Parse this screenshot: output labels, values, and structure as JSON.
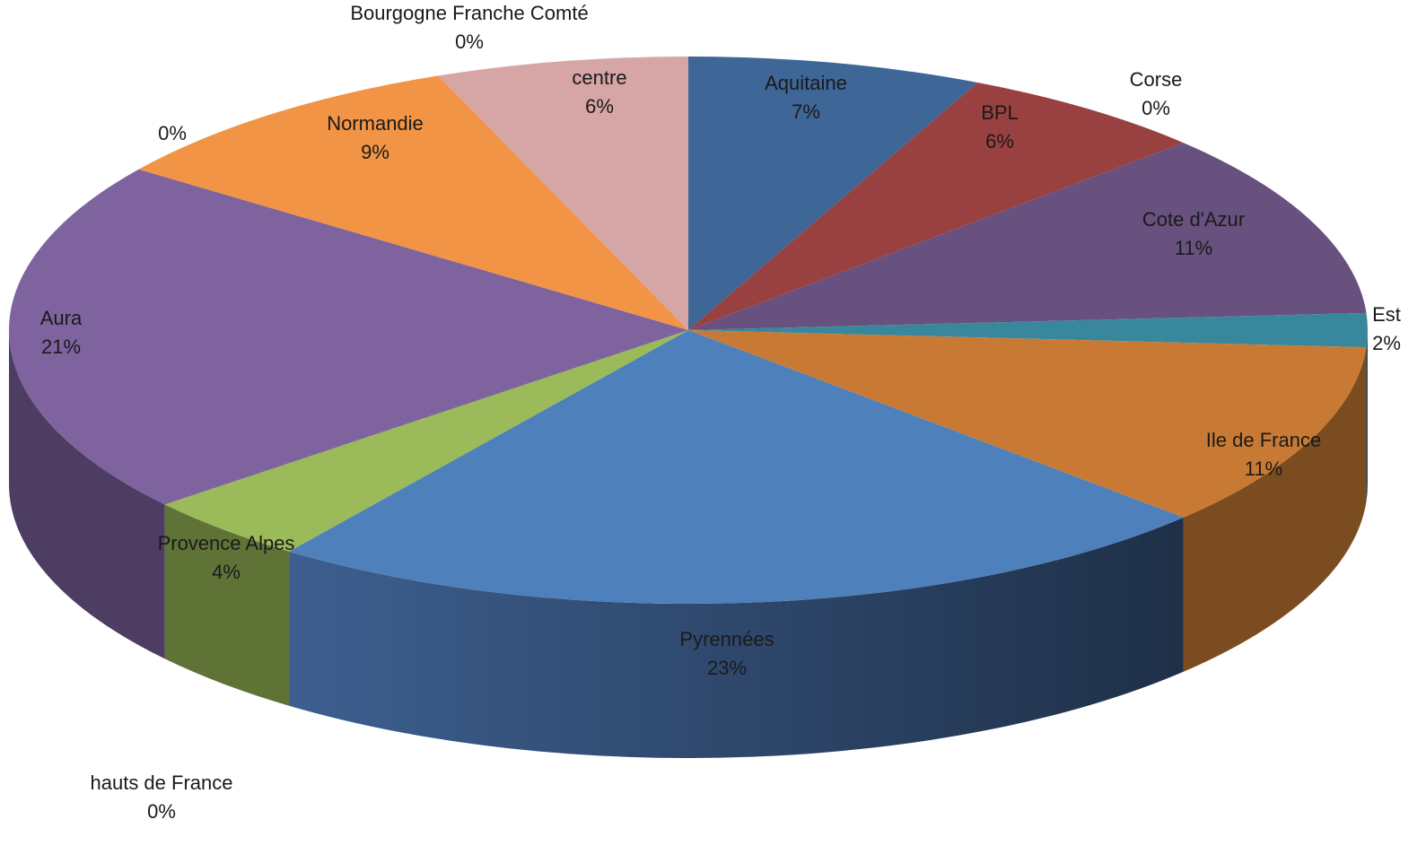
{
  "chart_data": {
    "type": "pie",
    "style": "3d",
    "legend": "none",
    "start_angle_deg": 0,
    "direction": "clockwise",
    "slices": [
      {
        "label": "Aquitaine",
        "value": 7,
        "display": "7%",
        "color": "#3E6697"
      },
      {
        "label": "BPL",
        "value": 6,
        "display": "6%",
        "color": "#994040"
      },
      {
        "label": "Corse",
        "value": 0,
        "display": "0%",
        "color": "#7B5E9A"
      },
      {
        "label": "Cote d'Azur",
        "value": 11,
        "display": "11%",
        "color": "#68507F"
      },
      {
        "label": "Est",
        "value": 2,
        "display": "2%",
        "color": "#38879C"
      },
      {
        "label": "Ile de France",
        "value": 11,
        "display": "11%",
        "color": "#C87A35"
      },
      {
        "label": "Pyrennées",
        "value": 23,
        "display": "23%",
        "color": "#4E80BB"
      },
      {
        "label": "hauts de France",
        "value": 0,
        "display": "0%",
        "color": "#7A9A45"
      },
      {
        "label": "Provence Alpes",
        "value": 4,
        "display": "4%",
        "color": "#9BBA59"
      },
      {
        "label": "Aura",
        "value": 21,
        "display": "21%",
        "color": "#7E639E"
      },
      {
        "label": "",
        "value": 0,
        "display": "0%",
        "color": "#9A7BBE"
      },
      {
        "label": "Normandie",
        "value": 9,
        "display": "9%",
        "color": "#F19445"
      },
      {
        "label": "centre",
        "value": 6,
        "display": "6%",
        "color": "#D6A5A6"
      },
      {
        "label": "Bourgogne Franche Comté",
        "value": 0,
        "display": "0%",
        "color": "#A7BFDE"
      }
    ]
  }
}
